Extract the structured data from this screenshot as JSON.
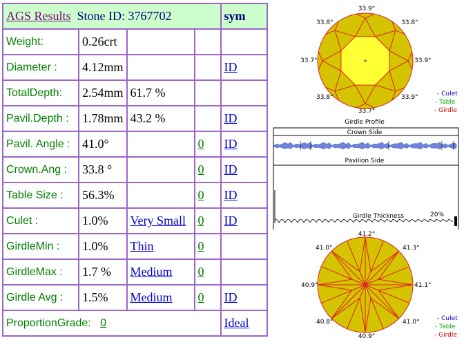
{
  "header": {
    "title_link": "AGS Results",
    "stone_id": "Stone ID:  3767702",
    "sym_label": "sym"
  },
  "rows": [
    {
      "label": "Weight:",
      "value": "0.26crt",
      "extra": "",
      "grade": "",
      "grade_is_link": false,
      "score": "",
      "id": ""
    },
    {
      "label": "Diameter :",
      "value": "4.12mm",
      "extra": "",
      "grade": "",
      "grade_is_link": false,
      "score": "",
      "id": "ID"
    },
    {
      "label": "TotalDepth:",
      "value": "2.54mm",
      "extra": "61.7 %",
      "grade": "",
      "grade_is_link": false,
      "score": "",
      "id": ""
    },
    {
      "label": "Pavil.Depth :",
      "value": "1.78mm",
      "extra": "43.2 %",
      "grade": "",
      "grade_is_link": false,
      "score": "",
      "id": "ID"
    },
    {
      "label": "Pavil. Angle :",
      "value": "41.0°",
      "extra": "",
      "grade": "",
      "grade_is_link": false,
      "score": "0",
      "id": "ID"
    },
    {
      "label": "Crown.Ang :",
      "value": "33.8 °",
      "extra": "",
      "grade": "",
      "grade_is_link": false,
      "score": "0",
      "id": "ID"
    },
    {
      "label": "Table Size :",
      "value": "56.3%",
      "extra": "",
      "grade": "",
      "grade_is_link": false,
      "score": "0",
      "id": "ID"
    },
    {
      "label": "Culet :",
      "value": "1.0%",
      "extra": "",
      "grade": "Very Small",
      "grade_is_link": true,
      "score": "0",
      "id": "ID"
    },
    {
      "label": "GirdleMin :",
      "value": "1.0%",
      "extra": "",
      "grade": "Thin",
      "grade_is_link": true,
      "score": "0",
      "id": ""
    },
    {
      "label": "GirdleMax :",
      "value": "1.7 %",
      "extra": "",
      "grade": "Medium",
      "grade_is_link": true,
      "score": "0",
      "id": ""
    },
    {
      "label": "Girdle Avg :",
      "value": "1.5%",
      "extra": "",
      "grade": "Medium",
      "grade_is_link": true,
      "score": "0",
      "id": "ID"
    }
  ],
  "footer": {
    "label": "ProportionGrade:",
    "score": "0",
    "result": "Ideal"
  },
  "crown_diagram": {
    "top": "33.9°",
    "upper_left": "33.8°",
    "upper_right": "33.8°",
    "left": "33.7°",
    "right": "33.9°",
    "lower_left": "33.8°",
    "lower_right": "33.9°",
    "bottom": "33.7°"
  },
  "legend_top": {
    "culet": "- Culet",
    "table": "- Table",
    "girdle": "- Girdle"
  },
  "profile": {
    "title": "Girdle Profile",
    "crown_side": "Crown Side",
    "pavilion_side": "Pavilion Side",
    "girdle_thickness": "Girdle Thickness",
    "percent": "20%"
  },
  "pavilion_diagram": {
    "top": "41.2°",
    "upper_left": "41.0°",
    "upper_right": "41.3°",
    "left": "40.9°",
    "right": "41.1°",
    "lower_left": "40.8°",
    "lower_right": "41.0°",
    "bottom": "40.9°"
  },
  "legend_bottom": {
    "culet": "- Culet",
    "table": "- Table",
    "girdle": "- Girdle"
  },
  "colors": {
    "border": "#9966cc",
    "label_green": "#008000",
    "header_bg": "#ccffcc",
    "link_blue": "#0000cc",
    "facet_gold": "#d4c400",
    "table_yellow": "#ffff33",
    "facet_line": "#e02020",
    "legend_culet": "#0000cc",
    "legend_table": "#00aa00",
    "legend_girdle": "#cc0000"
  }
}
